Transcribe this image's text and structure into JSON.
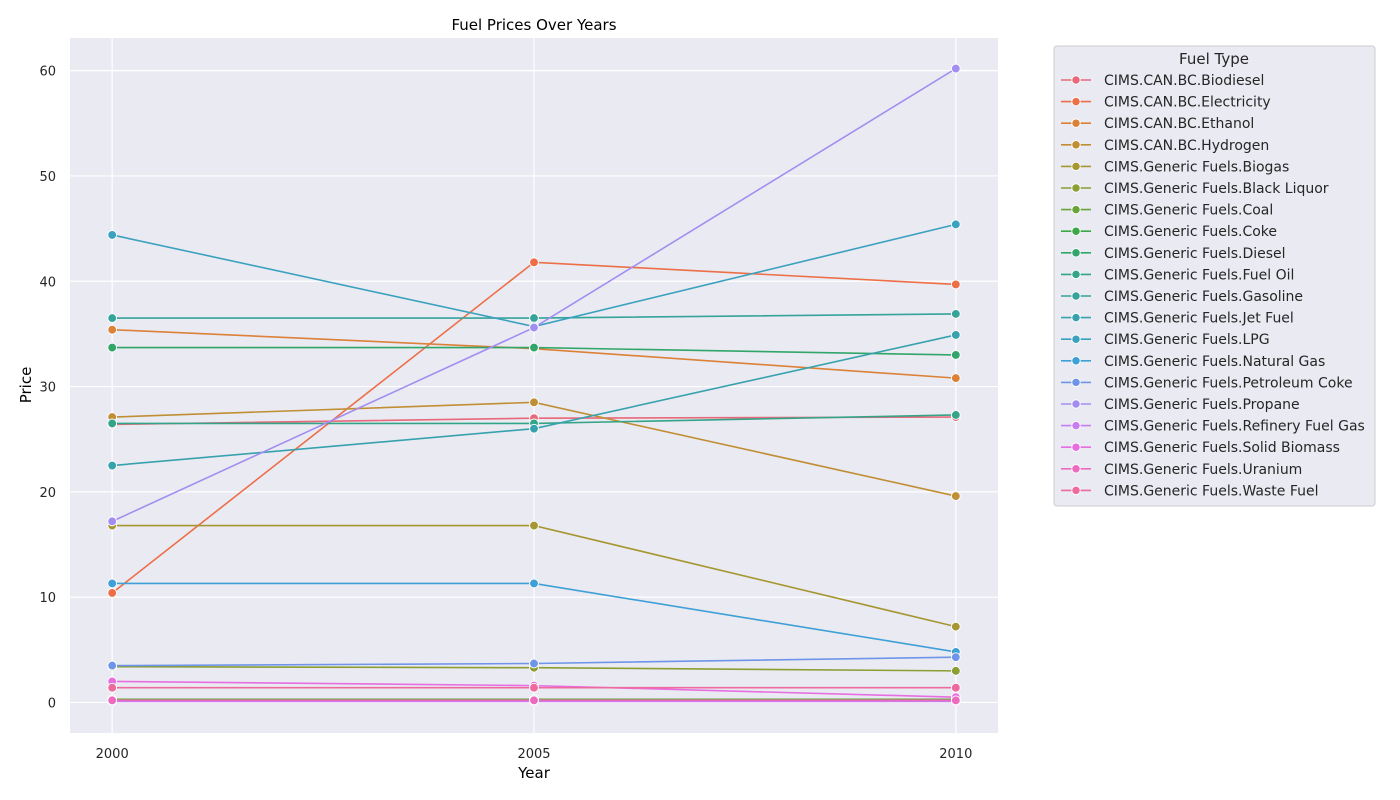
{
  "chart_data": {
    "type": "line",
    "title": "Fuel Prices Over Years",
    "xlabel": "Year",
    "ylabel": "Price",
    "x": [
      2000,
      2005,
      2010
    ],
    "xticks": [
      "2000",
      "2005",
      "2010"
    ],
    "yticks": [
      "0",
      "10",
      "20",
      "30",
      "40",
      "50",
      "60"
    ],
    "xlim": [
      1999.5,
      2010.5
    ],
    "ylim": [
      -2.9,
      63.1
    ],
    "grid": true,
    "legend_title": "Fuel Type",
    "legend_position": "outside-right",
    "series": [
      {
        "name": "CIMS.CAN.BC.Biodiesel",
        "color": "#e8697a",
        "values": [
          26.4,
          27.0,
          27.1
        ]
      },
      {
        "name": "CIMS.CAN.BC.Electricity",
        "color": "#ec6f48",
        "values": [
          10.4,
          41.8,
          39.7
        ]
      },
      {
        "name": "CIMS.CAN.BC.Ethanol",
        "color": "#dc8138",
        "values": [
          35.4,
          33.6,
          30.8
        ]
      },
      {
        "name": "CIMS.CAN.BC.Hydrogen",
        "color": "#c08f35",
        "values": [
          27.1,
          28.5,
          19.6
        ]
      },
      {
        "name": "CIMS.Generic Fuels.Biogas",
        "color": "#a69732",
        "values": [
          16.8,
          16.8,
          7.2
        ]
      },
      {
        "name": "CIMS.Generic Fuels.Black Liquor",
        "color": "#8b9d33",
        "values": [
          3.4,
          3.3,
          3.0
        ]
      },
      {
        "name": "CIMS.Generic Fuels.Coal",
        "color": "#6aa33a",
        "values": [
          0.3,
          0.3,
          0.3
        ]
      },
      {
        "name": "CIMS.Generic Fuels.Coke",
        "color": "#3da849",
        "values": [
          0.2,
          0.2,
          0.2
        ]
      },
      {
        "name": "CIMS.Generic Fuels.Diesel",
        "color": "#32a66a",
        "values": [
          33.7,
          33.7,
          33.0
        ]
      },
      {
        "name": "CIMS.Generic Fuels.Fuel Oil",
        "color": "#34a488",
        "values": [
          26.5,
          26.5,
          27.3
        ]
      },
      {
        "name": "CIMS.Generic Fuels.Gasoline",
        "color": "#35a39a",
        "values": [
          36.5,
          36.5,
          36.9
        ]
      },
      {
        "name": "CIMS.Generic Fuels.Jet Fuel",
        "color": "#37a2ad",
        "values": [
          22.5,
          26.0,
          34.9
        ]
      },
      {
        "name": "CIMS.Generic Fuels.LPG",
        "color": "#3aa1be",
        "values": [
          44.4,
          35.7,
          45.4
        ]
      },
      {
        "name": "CIMS.Generic Fuels.Natural Gas",
        "color": "#3ea0d6",
        "values": [
          11.3,
          11.3,
          4.8
        ]
      },
      {
        "name": "CIMS.Generic Fuels.Petroleum Coke",
        "color": "#6e95e8",
        "values": [
          3.5,
          3.7,
          4.3
        ]
      },
      {
        "name": "CIMS.Generic Fuels.Propane",
        "color": "#a38ef0",
        "values": [
          17.2,
          35.6,
          60.2
        ]
      },
      {
        "name": "CIMS.Generic Fuels.Refinery Fuel Gas",
        "color": "#c77cf0",
        "values": [
          0.1,
          0.1,
          0.1
        ]
      },
      {
        "name": "CIMS.Generic Fuels.Solid Biomass",
        "color": "#e66ee1",
        "values": [
          2.0,
          1.6,
          0.5
        ]
      },
      {
        "name": "CIMS.Generic Fuels.Uranium",
        "color": "#ed6bbf",
        "values": [
          0.2,
          0.2,
          0.2
        ]
      },
      {
        "name": "CIMS.Generic Fuels.Waste Fuel",
        "color": "#ec6a9c",
        "values": [
          1.4,
          1.4,
          1.4
        ]
      }
    ]
  }
}
